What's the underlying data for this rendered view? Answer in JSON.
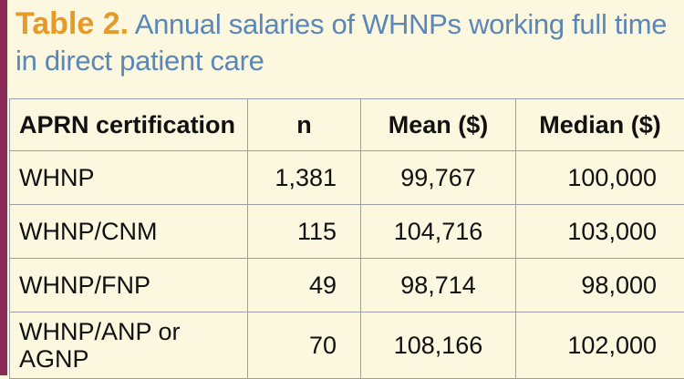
{
  "caption": {
    "label": "Table 2.",
    "text": "Annual salaries of WHNPs working full time in direct patient care"
  },
  "table": {
    "headers": [
      "APRN certification",
      "n",
      "Mean ($)",
      "Median ($)"
    ],
    "rows": [
      [
        "WHNP",
        "1,381",
        "99,767",
        "100,000"
      ],
      [
        "WHNP/CNM",
        "115",
        "104,716",
        "103,000"
      ],
      [
        "WHNP/FNP",
        "49",
        "98,714",
        "98,000"
      ],
      [
        "WHNP/ANP or AGNP",
        "70",
        "108,166",
        "102,000"
      ]
    ]
  },
  "colors": {
    "accent_bar": "#8b2a57",
    "label": "#e59a2a",
    "caption_text": "#5b87b8",
    "background": "#fcf7df"
  }
}
